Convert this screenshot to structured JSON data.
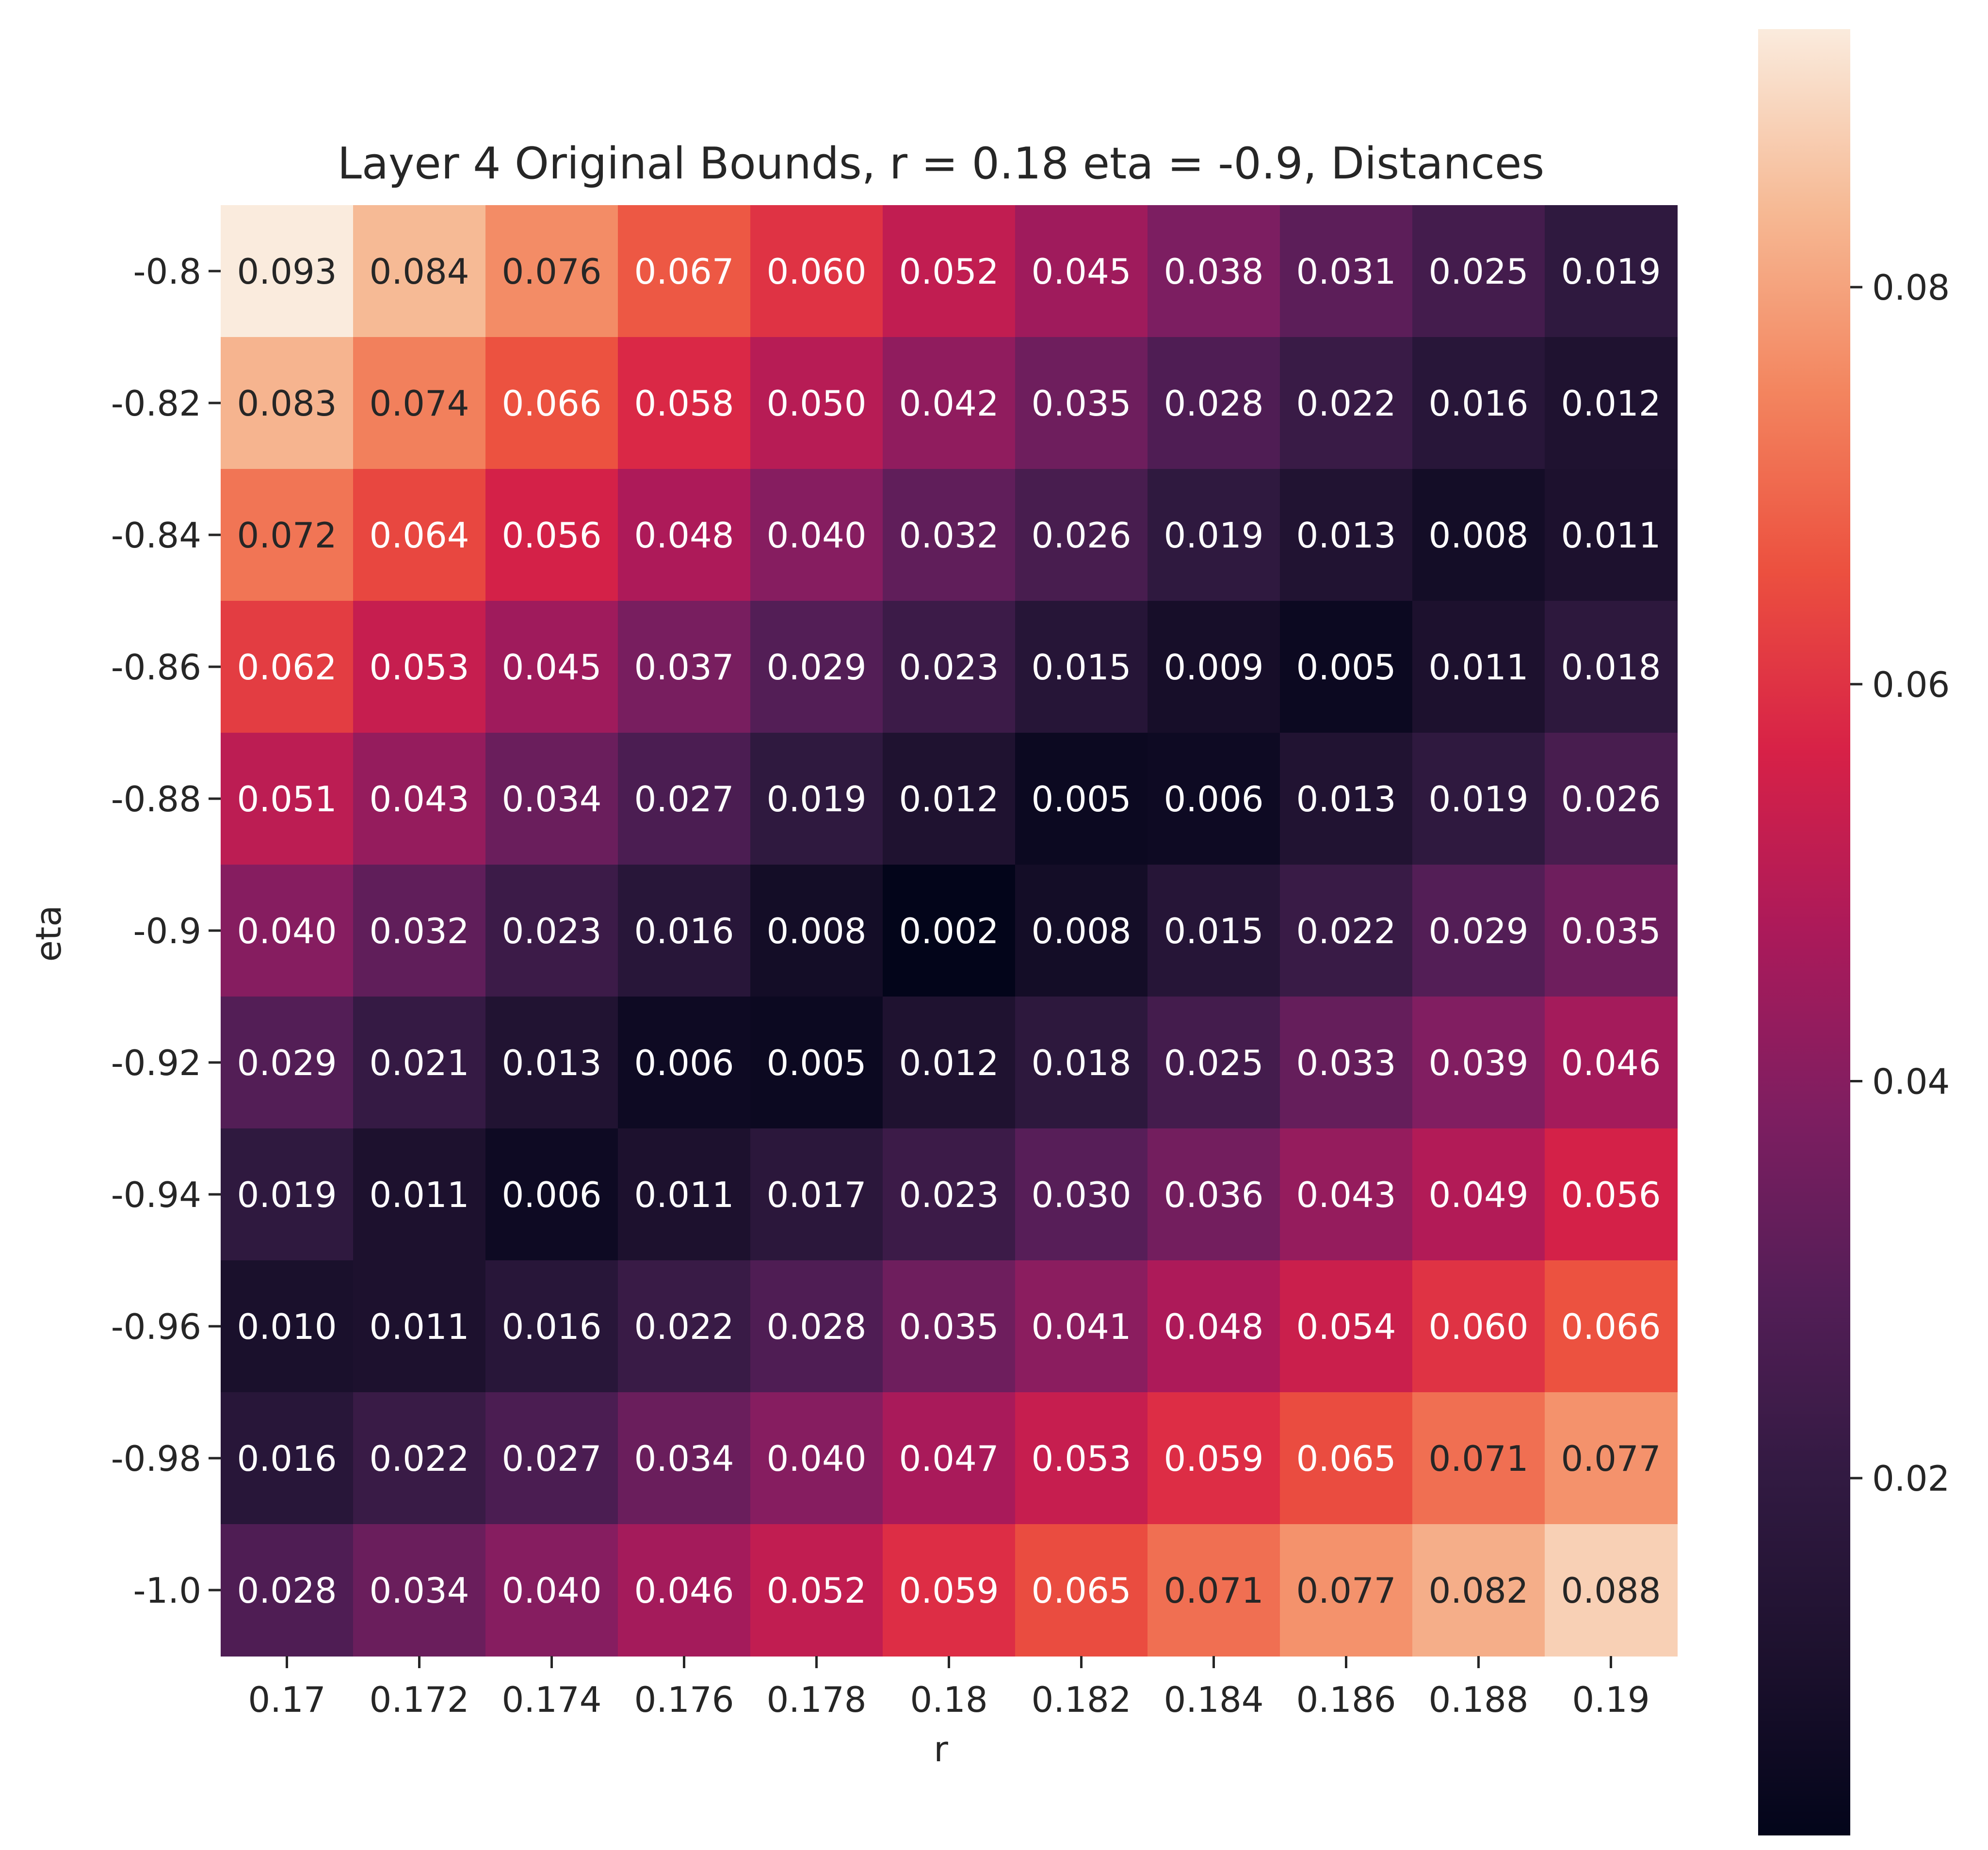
{
  "chart_data": {
    "type": "heatmap",
    "title": "Layer 4 Original Bounds, r = 0.18 eta = -0.9, Distances",
    "xlabel": "r",
    "ylabel": "eta",
    "x_categories": [
      "0.17",
      "0.172",
      "0.174",
      "0.176",
      "0.178",
      "0.18",
      "0.182",
      "0.184",
      "0.186",
      "0.188",
      "0.19"
    ],
    "y_categories": [
      "-0.8",
      "-0.82",
      "-0.84",
      "-0.86",
      "-0.88",
      "-0.9",
      "-0.92",
      "-0.94",
      "-0.96",
      "-0.98",
      "-1.0"
    ],
    "values": [
      [
        0.093,
        0.084,
        0.076,
        0.067,
        0.06,
        0.052,
        0.045,
        0.038,
        0.031,
        0.025,
        0.019
      ],
      [
        0.083,
        0.074,
        0.066,
        0.058,
        0.05,
        0.042,
        0.035,
        0.028,
        0.022,
        0.016,
        0.012
      ],
      [
        0.072,
        0.064,
        0.056,
        0.048,
        0.04,
        0.032,
        0.026,
        0.019,
        0.013,
        0.008,
        0.011
      ],
      [
        0.062,
        0.053,
        0.045,
        0.037,
        0.029,
        0.023,
        0.015,
        0.009,
        0.005,
        0.011,
        0.018
      ],
      [
        0.051,
        0.043,
        0.034,
        0.027,
        0.019,
        0.012,
        0.005,
        0.006,
        0.013,
        0.019,
        0.026
      ],
      [
        0.04,
        0.032,
        0.023,
        0.016,
        0.008,
        0.002,
        0.008,
        0.015,
        0.022,
        0.029,
        0.035
      ],
      [
        0.029,
        0.021,
        0.013,
        0.006,
        0.005,
        0.012,
        0.018,
        0.025,
        0.033,
        0.039,
        0.046
      ],
      [
        0.019,
        0.011,
        0.006,
        0.011,
        0.017,
        0.023,
        0.03,
        0.036,
        0.043,
        0.049,
        0.056
      ],
      [
        0.01,
        0.011,
        0.016,
        0.022,
        0.028,
        0.035,
        0.041,
        0.048,
        0.054,
        0.06,
        0.066
      ],
      [
        0.016,
        0.022,
        0.027,
        0.034,
        0.04,
        0.047,
        0.053,
        0.059,
        0.065,
        0.071,
        0.077
      ],
      [
        0.028,
        0.034,
        0.04,
        0.046,
        0.052,
        0.059,
        0.065,
        0.071,
        0.077,
        0.082,
        0.088
      ]
    ],
    "value_labels": [
      [
        "0.093",
        "0.084",
        "0.076",
        "0.067",
        "0.060",
        "0.052",
        "0.045",
        "0.038",
        "0.031",
        "0.025",
        "0.019"
      ],
      [
        "0.083",
        "0.074",
        "0.066",
        "0.058",
        "0.050",
        "0.042",
        "0.035",
        "0.028",
        "0.022",
        "0.016",
        "0.012"
      ],
      [
        "0.072",
        "0.064",
        "0.056",
        "0.048",
        "0.040",
        "0.032",
        "0.026",
        "0.019",
        "0.013",
        "0.008",
        "0.011"
      ],
      [
        "0.062",
        "0.053",
        "0.045",
        "0.037",
        "0.029",
        "0.023",
        "0.015",
        "0.009",
        "0.005",
        "0.011",
        "0.018"
      ],
      [
        "0.051",
        "0.043",
        "0.034",
        "0.027",
        "0.019",
        "0.012",
        "0.005",
        "0.006",
        "0.013",
        "0.019",
        "0.026"
      ],
      [
        "0.040",
        "0.032",
        "0.023",
        "0.016",
        "0.008",
        "0.002",
        "0.008",
        "0.015",
        "0.022",
        "0.029",
        "0.035"
      ],
      [
        "0.029",
        "0.021",
        "0.013",
        "0.006",
        "0.005",
        "0.012",
        "0.018",
        "0.025",
        "0.033",
        "0.039",
        "0.046"
      ],
      [
        "0.019",
        "0.011",
        "0.006",
        "0.011",
        "0.017",
        "0.023",
        "0.030",
        "0.036",
        "0.043",
        "0.049",
        "0.056"
      ],
      [
        "0.010",
        "0.011",
        "0.016",
        "0.022",
        "0.028",
        "0.035",
        "0.041",
        "0.048",
        "0.054",
        "0.060",
        "0.066"
      ],
      [
        "0.016",
        "0.022",
        "0.027",
        "0.034",
        "0.040",
        "0.047",
        "0.053",
        "0.059",
        "0.065",
        "0.071",
        "0.077"
      ],
      [
        "0.028",
        "0.034",
        "0.040",
        "0.046",
        "0.052",
        "0.059",
        "0.065",
        "0.071",
        "0.077",
        "0.082",
        "0.088"
      ]
    ],
    "colormap": "rocket",
    "color_range": [
      0.002,
      0.093
    ],
    "colorbar": {
      "ticks": [
        0.02,
        0.04,
        0.06,
        0.08
      ],
      "tick_labels": [
        "0.02",
        "0.04",
        "0.06",
        "0.08"
      ]
    },
    "grid": false,
    "legend": "colorbar-right"
  }
}
